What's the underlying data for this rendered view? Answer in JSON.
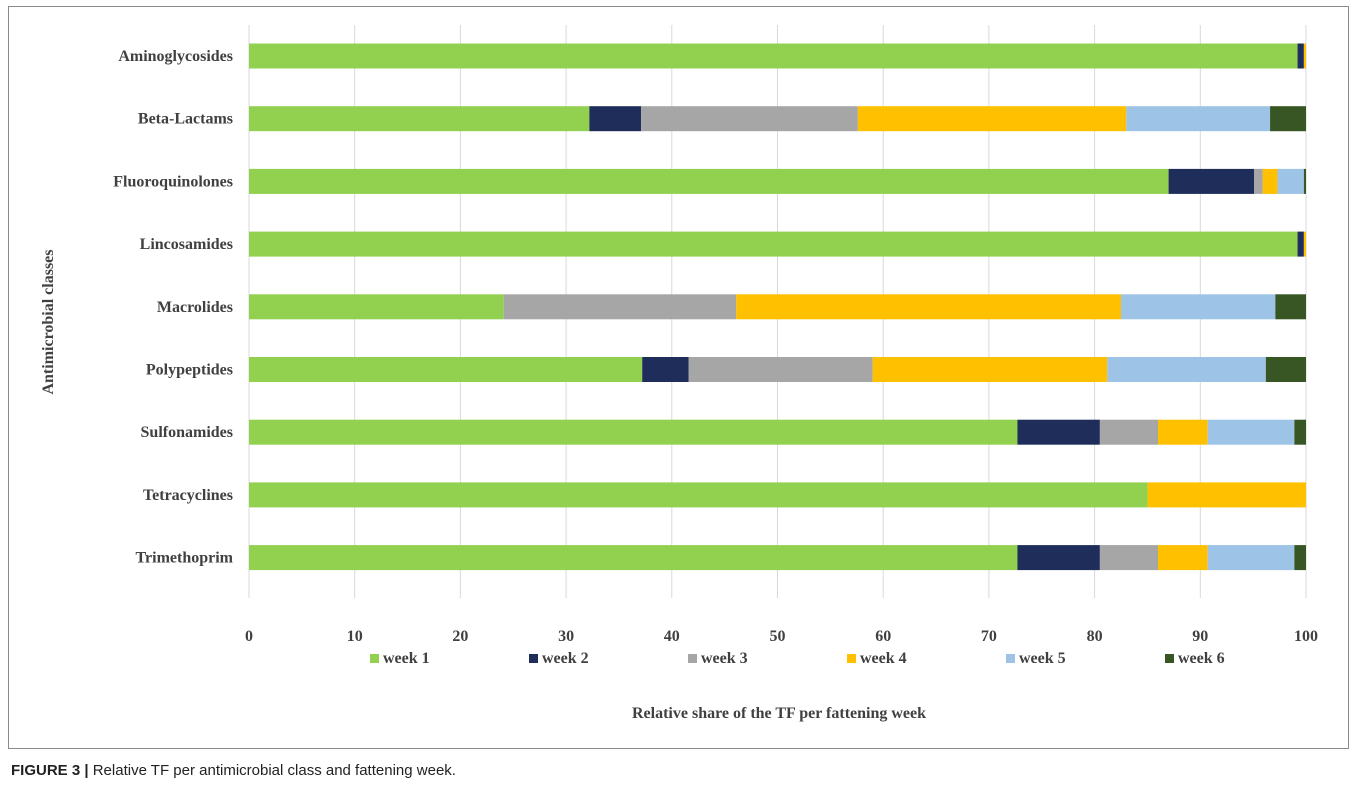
{
  "caption": {
    "label": "FIGURE 3 |",
    "text": "Relative TF per antimicrobial class and fattening week."
  },
  "chart_data": {
    "type": "bar",
    "orientation": "horizontal",
    "stacked": true,
    "title": "",
    "xlabel": "Relative share of the TF per fattening week",
    "ylabel": "Antimicrobial classes",
    "xlim": [
      0,
      100
    ],
    "xticks": [
      0,
      10,
      20,
      30,
      40,
      50,
      60,
      70,
      80,
      90,
      100
    ],
    "grid": "vertical",
    "legend_position": "bottom",
    "categories": [
      "Aminoglycosides",
      "Beta-Lactams",
      "Fluoroquinolones",
      "Lincosamides",
      "Macrolides",
      "Polypeptides",
      "Sulfonamides",
      "Tetracyclines",
      "Trimethoprim"
    ],
    "series": [
      {
        "name": "week 1",
        "color": "#92d050",
        "values": [
          99.2,
          32.2,
          87.0,
          99.2,
          24.1,
          37.2,
          72.7,
          85.0,
          72.7
        ]
      },
      {
        "name": "week 2",
        "color": "#1f2d5a",
        "values": [
          0.6,
          4.9,
          8.1,
          0.6,
          0.0,
          4.4,
          7.8,
          0.0,
          7.8
        ]
      },
      {
        "name": "week 3",
        "color": "#a6a6a6",
        "values": [
          0.0,
          20.5,
          0.8,
          0.0,
          22.0,
          17.4,
          5.5,
          0.0,
          5.5
        ]
      },
      {
        "name": "week 4",
        "color": "#ffc000",
        "values": [
          0.2,
          25.4,
          1.4,
          0.2,
          36.4,
          22.2,
          4.7,
          15.0,
          4.7
        ]
      },
      {
        "name": "week 5",
        "color": "#9dc3e6",
        "values": [
          0.0,
          13.6,
          2.5,
          0.0,
          14.6,
          15.0,
          8.2,
          0.0,
          8.2
        ]
      },
      {
        "name": "week 6",
        "color": "#375623",
        "values": [
          0.0,
          3.4,
          0.2,
          0.0,
          2.9,
          3.8,
          1.1,
          0.0,
          1.1
        ]
      }
    ]
  }
}
